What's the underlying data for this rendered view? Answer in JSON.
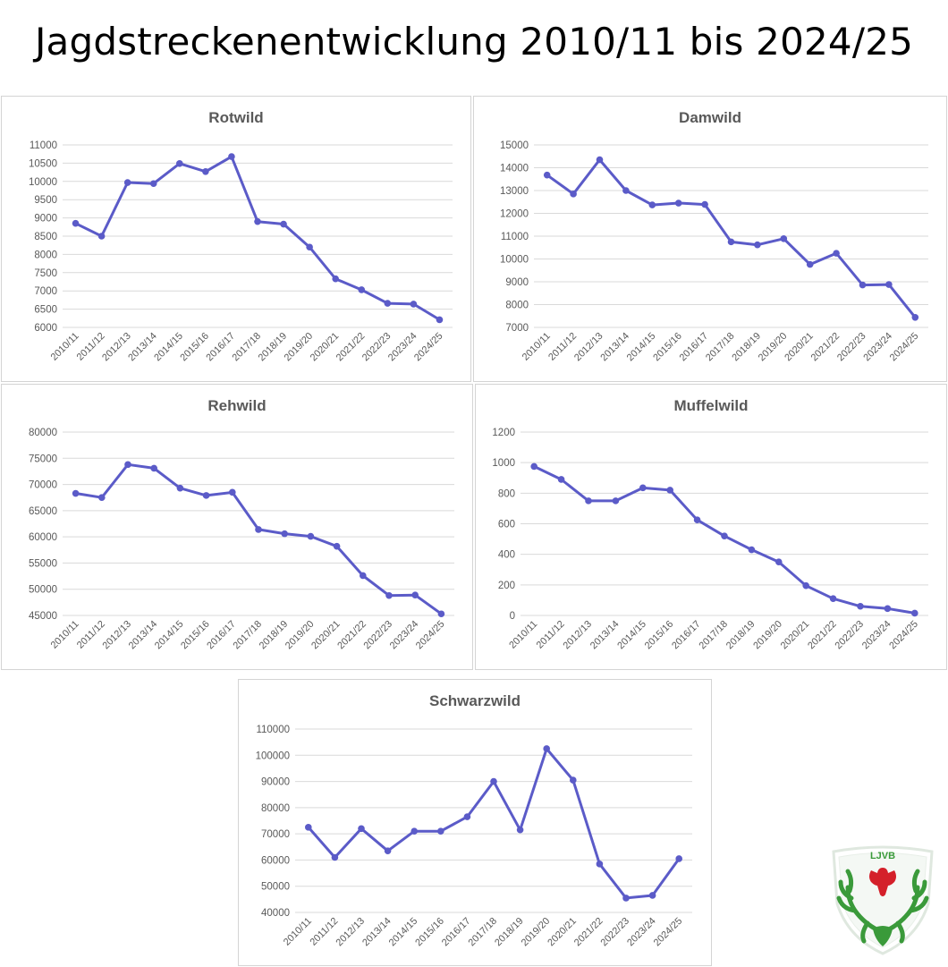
{
  "page_title": "Jagdstreckenentwicklung 2010/11 bis 2024/25",
  "logo_text": "LJVB",
  "colors": {
    "line": "#5b5bc8",
    "grid": "#d9d9d9",
    "text": "#595959",
    "logo_green": "#3a9a3a",
    "logo_red": "#d4202a"
  },
  "chart_data": [
    {
      "type": "line",
      "title": "Rotwild",
      "categories": [
        "2010/11",
        "2011/12",
        "2012/13",
        "2013/14",
        "2014/15",
        "2015/16",
        "2016/17",
        "2017/18",
        "2018/19",
        "2019/20",
        "2020/21",
        "2021/22",
        "2022/23",
        "2023/24",
        "2024/25"
      ],
      "values": [
        8850,
        8500,
        9970,
        9940,
        10490,
        10270,
        10680,
        8900,
        8830,
        8200,
        7330,
        7030,
        6660,
        6640,
        6210
      ],
      "ylim": [
        6000,
        11000
      ],
      "yticks": [
        6000,
        6500,
        7000,
        7500,
        8000,
        8500,
        9000,
        9500,
        10000,
        10500,
        11000
      ],
      "grid": true
    },
    {
      "type": "line",
      "title": "Damwild",
      "categories": [
        "2010/11",
        "2011/12",
        "2012/13",
        "2013/14",
        "2014/15",
        "2015/16",
        "2016/17",
        "2017/18",
        "2018/19",
        "2019/20",
        "2020/21",
        "2021/22",
        "2022/23",
        "2023/24",
        "2024/25"
      ],
      "values": [
        13680,
        12850,
        14350,
        13000,
        12370,
        12450,
        12390,
        10750,
        10620,
        10890,
        9760,
        10250,
        8860,
        8880,
        7440
      ],
      "ylim": [
        7000,
        15000
      ],
      "yticks": [
        7000,
        8000,
        9000,
        10000,
        11000,
        12000,
        13000,
        14000,
        15000
      ],
      "grid": true
    },
    {
      "type": "line",
      "title": "Rehwild",
      "categories": [
        "2010/11",
        "2011/12",
        "2012/13",
        "2013/14",
        "2014/15",
        "2015/16",
        "2016/17",
        "2017/18",
        "2018/19",
        "2019/20",
        "2020/21",
        "2021/22",
        "2022/23",
        "2023/24",
        "2024/25"
      ],
      "values": [
        68300,
        67500,
        73800,
        73100,
        69300,
        67900,
        68500,
        61400,
        60600,
        60100,
        58200,
        52600,
        48800,
        48900,
        45300
      ],
      "ylim": [
        45000,
        80000
      ],
      "yticks": [
        45000,
        50000,
        55000,
        60000,
        65000,
        70000,
        75000,
        80000
      ],
      "grid": true
    },
    {
      "type": "line",
      "title": "Muffelwild",
      "categories": [
        "2010/11",
        "2011/12",
        "2012/13",
        "2013/14",
        "2014/15",
        "2015/16",
        "2016/17",
        "2017/18",
        "2018/19",
        "2019/20",
        "2020/21",
        "2021/22",
        "2022/23",
        "2023/24",
        "2024/25"
      ],
      "values": [
        975,
        890,
        750,
        750,
        835,
        820,
        625,
        520,
        430,
        350,
        195,
        110,
        60,
        45,
        15
      ],
      "ylim": [
        0,
        1200
      ],
      "yticks": [
        0,
        200,
        400,
        600,
        800,
        1000,
        1200
      ],
      "grid": true
    },
    {
      "type": "line",
      "title": "Schwarzwild",
      "categories": [
        "2010/11",
        "2011/12",
        "2012/13",
        "2013/14",
        "2014/15",
        "2015/16",
        "2016/17",
        "2017/18",
        "2018/19",
        "2019/20",
        "2020/21",
        "2021/22",
        "2022/23",
        "2023/24",
        "2024/25"
      ],
      "values": [
        72500,
        61000,
        72000,
        63500,
        71000,
        71000,
        76500,
        90000,
        71500,
        102500,
        90500,
        58500,
        45500,
        46500,
        60500
      ],
      "ylim": [
        40000,
        110000
      ],
      "yticks": [
        40000,
        50000,
        60000,
        70000,
        80000,
        90000,
        100000,
        110000
      ],
      "grid": true
    }
  ]
}
